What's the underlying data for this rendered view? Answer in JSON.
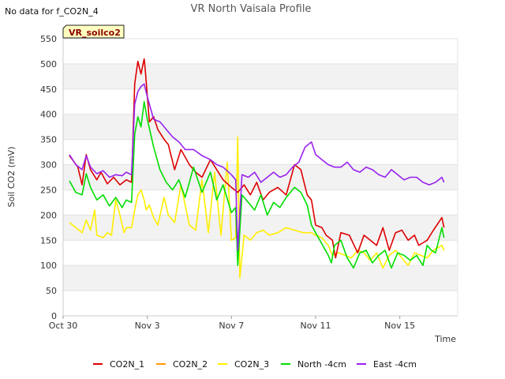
{
  "nodata_text": "No data for f_CO2N_4",
  "chart_data": {
    "type": "line",
    "title": "VR North Vaisala Profile",
    "xlabel": "Time",
    "ylabel": "Soil CO2 (mV)",
    "site_label": "VR_soilco2",
    "ylim": [
      0,
      550
    ],
    "yticks": [
      0,
      50,
      100,
      150,
      200,
      250,
      300,
      350,
      400,
      450,
      500,
      550
    ],
    "xlim": [
      0,
      18.75
    ],
    "xticks": [
      {
        "v": 0,
        "label": "Oct 30"
      },
      {
        "v": 4,
        "label": "Nov 3"
      },
      {
        "v": 8,
        "label": "Nov 7"
      },
      {
        "v": 12,
        "label": "Nov 11"
      },
      {
        "v": 16,
        "label": "Nov 15"
      }
    ],
    "grid": "horizontal bands",
    "legend_position": "bottom",
    "series": [
      {
        "name": "CO2N_1",
        "color": "#dd0000",
        "x": [
          0.3,
          0.7,
          0.9,
          1.1,
          1.3,
          1.6,
          1.8,
          2.1,
          2.4,
          2.7,
          3.0,
          3.25,
          3.4,
          3.55,
          3.7,
          3.85,
          3.9,
          4.1,
          4.3,
          4.5,
          4.8,
          5.0,
          5.3,
          5.6,
          6.0,
          6.3,
          6.6,
          7.0,
          7.3,
          7.6,
          8.0,
          8.3,
          8.6,
          8.9,
          9.2,
          9.5,
          9.8,
          10.2,
          10.6,
          11.0,
          11.3,
          11.6,
          11.8,
          12.0,
          12.3,
          12.5,
          12.8,
          12.95,
          13.2,
          13.6,
          14.0,
          14.3,
          14.6,
          14.9,
          15.2,
          15.5,
          15.8,
          16.1,
          16.4,
          16.7,
          16.9,
          17.1,
          17.3,
          17.6,
          18.0,
          18.1
        ],
        "y": [
          318,
          295,
          260,
          320,
          290,
          270,
          285,
          262,
          275,
          260,
          270,
          265,
          460,
          505,
          480,
          510,
          490,
          385,
          395,
          370,
          350,
          340,
          290,
          330,
          300,
          285,
          275,
          310,
          290,
          270,
          255,
          245,
          260,
          240,
          265,
          230,
          245,
          255,
          240,
          300,
          290,
          240,
          230,
          180,
          175,
          160,
          150,
          115,
          165,
          160,
          125,
          160,
          150,
          140,
          175,
          130,
          165,
          170,
          150,
          160,
          140,
          145,
          150,
          170,
          195,
          175
        ]
      },
      {
        "name": "CO2N_2",
        "color": "#ff9900",
        "x": [],
        "y": []
      },
      {
        "name": "CO2N_3",
        "color": "#ffee00",
        "x": [
          0.3,
          0.6,
          0.9,
          1.1,
          1.3,
          1.5,
          1.6,
          1.9,
          2.1,
          2.3,
          2.5,
          2.7,
          2.9,
          3.0,
          3.25,
          3.4,
          3.55,
          3.7,
          3.85,
          3.95,
          4.1,
          4.3,
          4.5,
          4.8,
          5.0,
          5.3,
          5.6,
          6.0,
          6.3,
          6.6,
          6.9,
          7.2,
          7.5,
          7.8,
          8.0,
          8.2,
          8.3,
          8.4,
          8.6,
          8.9,
          9.2,
          9.5,
          9.8,
          10.2,
          10.6,
          11.0,
          11.4,
          11.8,
          12.0,
          12.3,
          12.6,
          12.8,
          13.1,
          13.4,
          13.7,
          14.0,
          14.3,
          14.6,
          14.9,
          15.2,
          15.5,
          15.8,
          16.1,
          16.4,
          16.7,
          17.0,
          17.3,
          17.6,
          18.0,
          18.1
        ],
        "y": [
          185,
          175,
          165,
          190,
          170,
          210,
          160,
          155,
          165,
          160,
          230,
          200,
          165,
          175,
          175,
          210,
          240,
          250,
          230,
          210,
          220,
          195,
          180,
          235,
          200,
          185,
          260,
          180,
          170,
          270,
          165,
          285,
          160,
          305,
          150,
          155,
          355,
          75,
          160,
          150,
          165,
          170,
          160,
          165,
          175,
          170,
          165,
          165,
          160,
          155,
          140,
          120,
          125,
          120,
          115,
          130,
          125,
          110,
          125,
          95,
          120,
          130,
          115,
          100,
          125,
          120,
          115,
          130,
          140,
          130
        ]
      },
      {
        "name": "North -4cm",
        "color": "#00dd00",
        "x": [
          0.3,
          0.6,
          0.9,
          1.1,
          1.3,
          1.6,
          1.9,
          2.2,
          2.5,
          2.8,
          3.0,
          3.25,
          3.4,
          3.55,
          3.7,
          3.85,
          4.0,
          4.3,
          4.6,
          4.9,
          5.2,
          5.5,
          5.8,
          6.2,
          6.6,
          7.0,
          7.3,
          7.6,
          8.0,
          8.2,
          8.3,
          8.5,
          8.8,
          9.1,
          9.4,
          9.7,
          10.0,
          10.3,
          10.6,
          11.0,
          11.3,
          11.6,
          11.8,
          12.0,
          12.2,
          12.4,
          12.6,
          12.75,
          12.9,
          13.2,
          13.5,
          13.8,
          14.1,
          14.4,
          14.7,
          15.0,
          15.3,
          15.6,
          15.9,
          16.2,
          16.5,
          16.8,
          17.1,
          17.3,
          17.5,
          17.7,
          18.0,
          18.1
        ],
        "y": [
          268,
          245,
          240,
          282,
          255,
          230,
          240,
          218,
          235,
          215,
          230,
          225,
          360,
          395,
          375,
          425,
          390,
          335,
          290,
          265,
          250,
          270,
          235,
          295,
          245,
          285,
          230,
          260,
          205,
          215,
          100,
          240,
          225,
          210,
          240,
          200,
          225,
          215,
          235,
          255,
          245,
          220,
          180,
          165,
          150,
          135,
          120,
          105,
          140,
          150,
          115,
          95,
          125,
          130,
          105,
          120,
          130,
          95,
          125,
          120,
          110,
          120,
          100,
          140,
          130,
          125,
          175,
          155
        ]
      },
      {
        "name": "East -4cm",
        "color": "#9922ee",
        "x": [
          0.3,
          0.6,
          0.9,
          1.1,
          1.3,
          1.6,
          1.9,
          2.2,
          2.5,
          2.8,
          3.0,
          3.25,
          3.4,
          3.55,
          3.7,
          3.85,
          4.0,
          4.3,
          4.6,
          4.9,
          5.2,
          5.5,
          5.8,
          6.2,
          6.6,
          7.0,
          7.3,
          7.6,
          8.0,
          8.2,
          8.3,
          8.5,
          8.8,
          9.1,
          9.4,
          9.7,
          10.0,
          10.3,
          10.6,
          10.9,
          11.2,
          11.5,
          11.8,
          12.0,
          12.3,
          12.6,
          12.9,
          13.2,
          13.5,
          13.8,
          14.1,
          14.4,
          14.7,
          15.0,
          15.3,
          15.6,
          15.9,
          16.2,
          16.5,
          16.8,
          17.1,
          17.4,
          17.7,
          18.0,
          18.1
        ],
        "y": [
          320,
          300,
          290,
          318,
          295,
          282,
          288,
          275,
          280,
          278,
          285,
          280,
          420,
          445,
          455,
          460,
          435,
          390,
          385,
          370,
          355,
          345,
          330,
          330,
          318,
          310,
          300,
          295,
          280,
          270,
          130,
          280,
          275,
          285,
          265,
          275,
          285,
          275,
          280,
          295,
          305,
          335,
          345,
          320,
          310,
          300,
          295,
          295,
          305,
          290,
          285,
          295,
          290,
          280,
          275,
          290,
          280,
          270,
          275,
          275,
          265,
          260,
          265,
          275,
          265
        ]
      }
    ]
  }
}
